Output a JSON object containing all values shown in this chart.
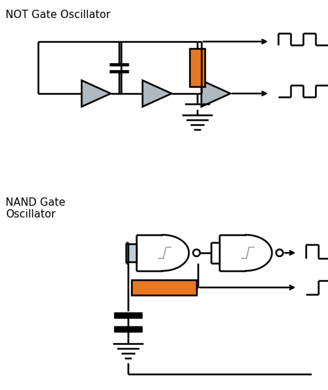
{
  "title1": "NOT Gate Oscillator",
  "title2": "NAND Gate\nOscillator",
  "orange_color": "#E87722",
  "gate_fill_light": "#C8D4DC",
  "gate_fill_gray": "#B0B8C0",
  "line_color": "#000000",
  "bg_color": "#FFFFFF",
  "lw": 1.8,
  "fig_w": 4.74,
  "fig_h": 5.63,
  "dpi": 100
}
